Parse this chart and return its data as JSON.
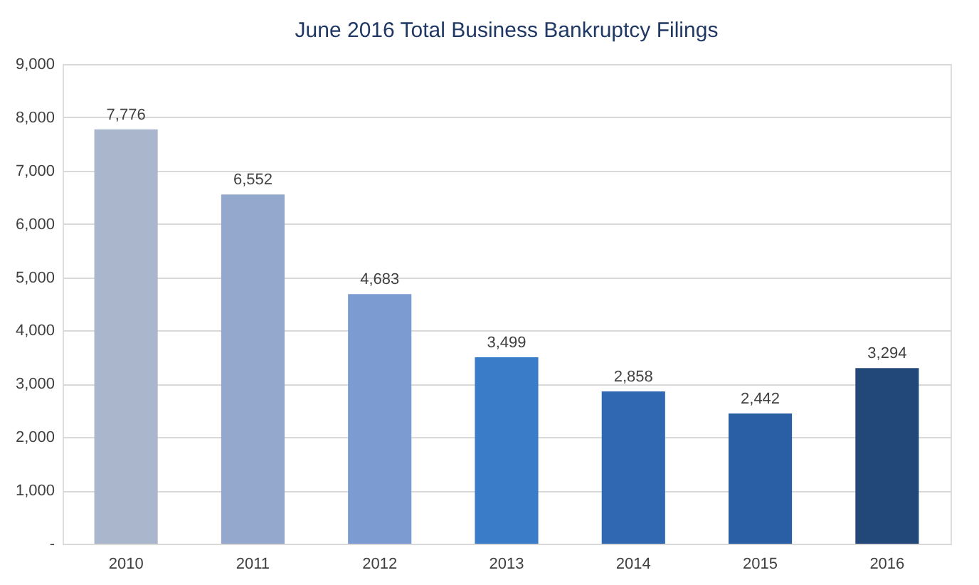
{
  "chart_data": {
    "type": "bar",
    "title": "June 2016 Total Business Bankruptcy Filings",
    "categories": [
      "2010",
      "2011",
      "2012",
      "2013",
      "2014",
      "2015",
      "2016"
    ],
    "values": [
      7776,
      6552,
      4683,
      3499,
      2858,
      2442,
      3294
    ],
    "colors": [
      "#aab6cb",
      "#94a8ce",
      "#7b9bd1",
      "#3b7cc9",
      "#3069b1",
      "#2a5fa6",
      "#22487a"
    ],
    "ylim": [
      0,
      9000
    ],
    "yticks": [
      {
        "value": 0,
        "label": "-"
      },
      {
        "value": 1000,
        "label": "1,000"
      },
      {
        "value": 2000,
        "label": "2,000"
      },
      {
        "value": 3000,
        "label": "3,000"
      },
      {
        "value": 4000,
        "label": "4,000"
      },
      {
        "value": 5000,
        "label": "5,000"
      },
      {
        "value": 6000,
        "label": "6,000"
      },
      {
        "value": 7000,
        "label": "7,000"
      },
      {
        "value": 8000,
        "label": "8,000"
      },
      {
        "value": 9000,
        "label": "9,000"
      }
    ],
    "value_labels": [
      "7,776",
      "6,552",
      "4,683",
      "3,499",
      "2,858",
      "2,442",
      "3,294"
    ],
    "grid": "y"
  }
}
